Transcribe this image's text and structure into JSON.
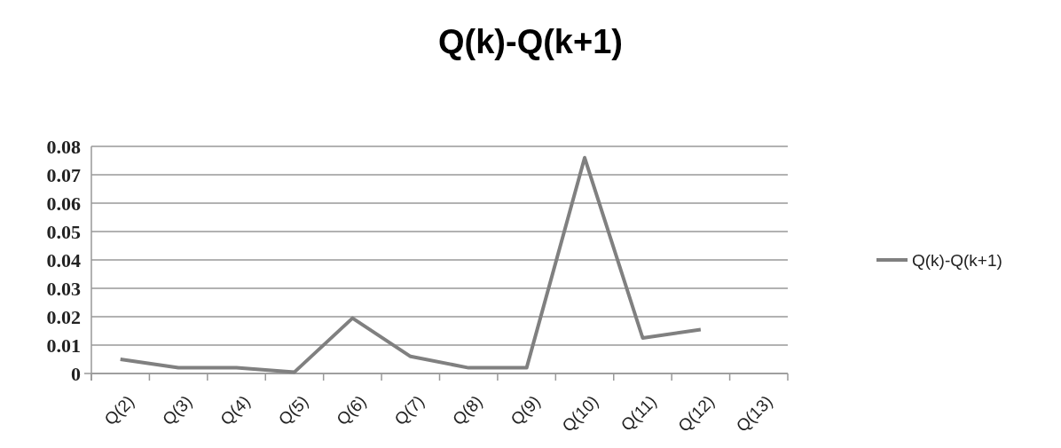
{
  "chart_data": {
    "type": "line",
    "title": "Q(k)-Q(k+1)",
    "categories": [
      "Q(2)",
      "Q(3)",
      "Q(4)",
      "Q(5)",
      "Q(6)",
      "Q(7)",
      "Q(8)",
      "Q(9)",
      "Q(10)",
      "Q(11)",
      "Q(12)",
      "Q(13)"
    ],
    "series": [
      {
        "name": "Q(k)-Q(k+1)",
        "color": "#808080",
        "values": [
          0.005,
          0.002,
          0.002,
          0.0005,
          0.0195,
          0.006,
          0.002,
          0.002,
          0.076,
          0.0125,
          0.0155,
          null
        ]
      }
    ],
    "ylim": [
      0,
      0.08
    ],
    "yticks": [
      0,
      0.01,
      0.02,
      0.03,
      0.04,
      0.05,
      0.06,
      0.07,
      0.08
    ],
    "grid": "y",
    "legend": "right",
    "marker": "none",
    "line_style": "solid"
  }
}
